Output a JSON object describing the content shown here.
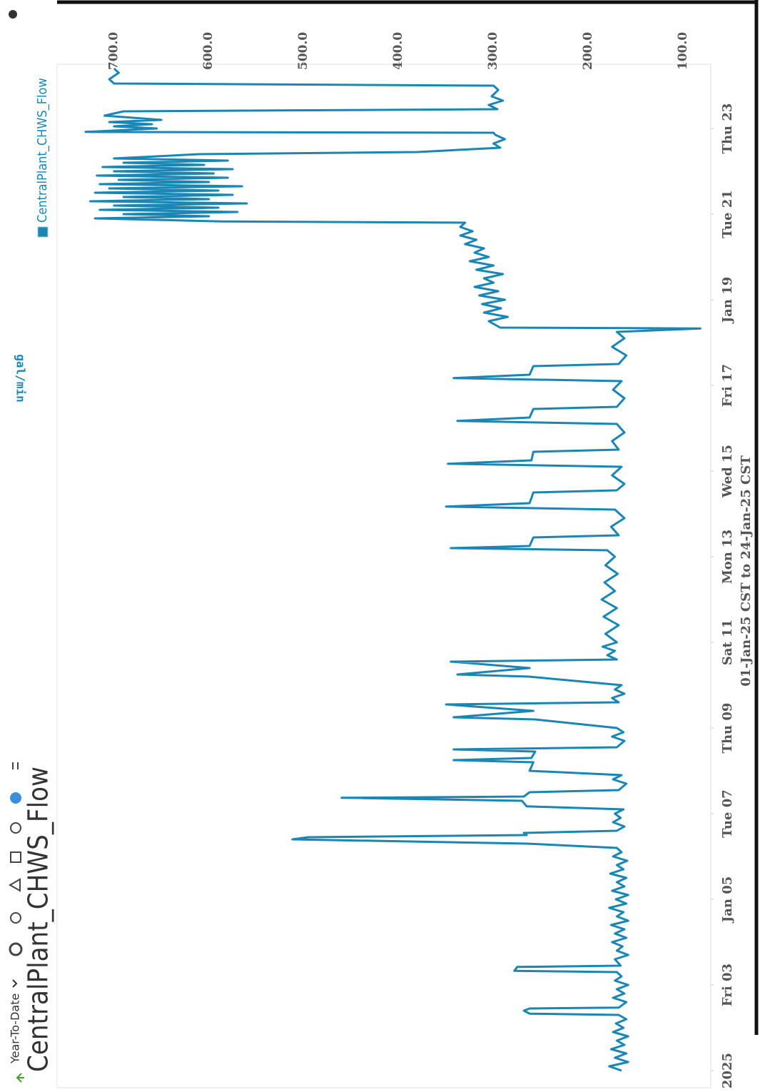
{
  "toolbar": {
    "range": "Year-To-Date"
  },
  "chart_data": {
    "type": "line",
    "title": "CentralPlant_CHWS_Flow",
    "x_label": "01-Jan-25 CST to 24-Jan-25 CST",
    "y_label": "gal/min",
    "xlim": [
      0.6,
      24.5
    ],
    "xticks": [
      {
        "value": 1,
        "label": "2025"
      },
      {
        "value": 3,
        "label": "Fri 03"
      },
      {
        "value": 5,
        "label": "Jan 05"
      },
      {
        "value": 7,
        "label": "Tue 07"
      },
      {
        "value": 9,
        "label": "Thu 09"
      },
      {
        "value": 11,
        "label": "Sat 11"
      },
      {
        "value": 13,
        "label": "Mon 13"
      },
      {
        "value": 15,
        "label": "Wed 15"
      },
      {
        "value": 17,
        "label": "Fri 17"
      },
      {
        "value": 19,
        "label": "Jan 19"
      },
      {
        "value": 21,
        "label": "Tue 21"
      },
      {
        "value": 23,
        "label": "Thu 23"
      }
    ],
    "ylim": [
      71,
      760
    ],
    "yticks": [
      {
        "value": 100,
        "label": "100.0"
      },
      {
        "value": 200,
        "label": "200.0"
      },
      {
        "value": 300,
        "label": "300.0"
      },
      {
        "value": 400,
        "label": "400.0"
      },
      {
        "value": 500,
        "label": "500.0"
      },
      {
        "value": 600,
        "label": "600.0"
      },
      {
        "value": 700,
        "label": "700.0"
      }
    ],
    "grid": false,
    "legend": "top-right",
    "x": [
      1.0,
      1.1,
      1.2,
      1.3,
      1.4,
      1.5,
      1.6,
      1.7,
      1.8,
      1.9,
      2.0,
      2.1,
      2.2,
      2.3,
      2.33,
      2.4,
      2.45,
      2.47,
      2.6,
      2.7,
      2.8,
      2.9,
      3.0,
      3.1,
      3.2,
      3.3,
      3.33,
      3.42,
      3.45,
      3.6,
      3.7,
      3.8,
      3.9,
      4.0,
      4.1,
      4.2,
      4.3,
      4.4,
      4.5,
      4.6,
      4.7,
      4.8,
      4.9,
      5.0,
      5.1,
      5.2,
      5.3,
      5.4,
      5.5,
      5.6,
      5.7,
      5.8,
      5.9,
      6.0,
      6.1,
      6.2,
      6.3,
      6.4,
      6.45,
      6.5,
      6.55,
      6.6,
      6.7,
      6.8,
      6.9,
      7.0,
      7.1,
      7.17,
      7.3,
      7.37,
      7.4,
      7.5,
      7.55,
      7.7,
      7.8,
      7.9,
      8.0,
      8.2,
      8.25,
      8.3,
      8.45,
      8.5,
      8.55,
      8.7,
      8.8,
      8.9,
      9.0,
      9.2,
      9.25,
      9.4,
      9.55,
      9.6,
      9.7,
      9.8,
      9.9,
      10.0,
      10.2,
      10.25,
      10.4,
      10.55,
      10.6,
      10.7,
      10.8,
      10.9,
      11.0,
      11.2,
      11.4,
      11.6,
      11.8,
      12.0,
      12.2,
      12.4,
      12.6,
      12.8,
      13.0,
      13.15,
      13.2,
      13.25,
      13.45,
      13.5,
      13.7,
      13.9,
      14.1,
      14.17,
      14.25,
      14.5,
      14.55,
      14.7,
      14.9,
      15.1,
      15.17,
      15.25,
      15.45,
      15.5,
      15.7,
      15.9,
      16.1,
      16.17,
      16.25,
      16.45,
      16.5,
      16.7,
      16.9,
      17.1,
      17.17,
      17.25,
      17.45,
      17.5,
      17.7,
      17.9,
      18.1,
      18.25,
      18.33,
      18.35,
      18.5,
      18.6,
      18.7,
      18.8,
      18.9,
      19.0,
      19.1,
      19.2,
      19.3,
      19.4,
      19.5,
      19.6,
      19.7,
      19.8,
      19.9,
      20.0,
      20.1,
      20.2,
      20.3,
      20.4,
      20.5,
      20.6,
      20.7,
      20.8,
      20.83,
      20.9,
      20.95,
      21.0,
      21.05,
      21.1,
      21.15,
      21.2,
      21.25,
      21.3,
      21.35,
      21.4,
      21.45,
      21.5,
      21.55,
      21.6,
      21.65,
      21.7,
      21.75,
      21.8,
      21.85,
      21.9,
      21.95,
      22.0,
      22.05,
      22.1,
      22.15,
      22.2,
      22.25,
      22.3,
      22.4,
      22.45,
      22.55,
      22.65,
      22.75,
      22.85,
      22.9,
      22.92,
      23.0,
      23.05,
      23.1,
      23.15,
      23.2,
      23.3,
      23.4,
      23.45,
      23.55,
      23.65,
      23.75,
      23.9,
      24.0,
      24.02,
      24.05,
      24.15,
      24.3,
      24.4
    ],
    "series": [
      {
        "name": "CentralPlant_CHWS_Flow",
        "color": "#1a86b4",
        "values": [
          165,
          178,
          158,
          172,
          160,
          176,
          162,
          170,
          158,
          174,
          163,
          171,
          160,
          168,
          262,
          268,
          262,
          168,
          160,
          174,
          162,
          170,
          158,
          172,
          165,
          170,
          278,
          275,
          166,
          172,
          158,
          170,
          164,
          175,
          160,
          172,
          162,
          176,
          158,
          170,
          163,
          178,
          160,
          171,
          158,
          175,
          162,
          170,
          160,
          177,
          163,
          170,
          159,
          174,
          165,
          170,
          265,
          512,
          495,
          265,
          268,
          170,
          162,
          174,
          166,
          172,
          163,
          265,
          270,
          460,
          268,
          262,
          168,
          160,
          174,
          165,
          262,
          258,
          342,
          260,
          256,
          342,
          170,
          162,
          175,
          163,
          170,
          256,
          342,
          258,
          350,
          168,
          175,
          162,
          172,
          165,
          263,
          338,
          262,
          345,
          170,
          180,
          172,
          185,
          170,
          182,
          168,
          184,
          170,
          186,
          172,
          183,
          169,
          182,
          172,
          180,
          345,
          262,
          258,
          168,
          176,
          162,
          172,
          350,
          262,
          258,
          170,
          162,
          175,
          165,
          348,
          260,
          258,
          168,
          175,
          162,
          170,
          338,
          262,
          258,
          170,
          162,
          174,
          165,
          342,
          262,
          258,
          168,
          160,
          175,
          162,
          170,
          82,
          293,
          305,
          285,
          310,
          292,
          312,
          288,
          315,
          295,
          320,
          300,
          310,
          290,
          318,
          300,
          325,
          305,
          320,
          310,
          330,
          318,
          335,
          322,
          335,
          330,
          587,
          720,
          600,
          690,
          570,
          715,
          590,
          700,
          560,
          725,
          600,
          690,
          575,
          720,
          590,
          705,
          565,
          715,
          600,
          695,
          580,
          718,
          595,
          700,
          575,
          712,
          605,
          690,
          580,
          700,
          610,
          380,
          293,
          300,
          288,
          298,
          300,
          730,
          655,
          700,
          660,
          705,
          650,
          710,
          690,
          296,
          305,
          290,
          302,
          295,
          300,
          466,
          700,
          705,
          695,
          700
        ]
      }
    ]
  }
}
